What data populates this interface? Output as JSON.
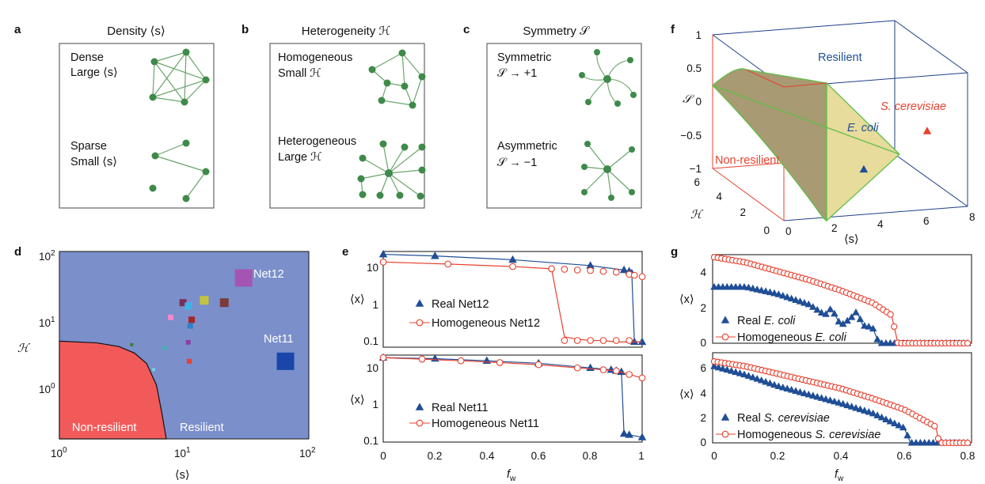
{
  "panels": {
    "a": {
      "label": "a",
      "title": "Density ⟨s⟩",
      "top_lines": [
        "Dense",
        "Large ⟨s⟩"
      ],
      "bottom_lines": [
        "Sparse",
        "Small ⟨s⟩"
      ]
    },
    "b": {
      "label": "b",
      "title": "Heterogeneity ℋ",
      "top_lines": [
        "Homogeneous",
        "Small ℋ"
      ],
      "bottom_lines": [
        "Heterogeneous",
        "Large ℋ"
      ]
    },
    "c": {
      "label": "c",
      "title": "Symmetry 𝒮",
      "top_lines": [
        "Symmetric",
        "𝒮 → +1"
      ],
      "bottom_lines": [
        "Asymmetric",
        "𝒮 → −1"
      ]
    },
    "f": {
      "label": "f",
      "z_label": "𝒮",
      "z_ticks": [
        "1",
        "0.5",
        "0",
        "−0.5",
        "−1"
      ],
      "h_label": "ℋ",
      "h_ticks": [
        "6",
        "4",
        "2",
        "0"
      ],
      "s_label": "⟨s⟩",
      "s_ticks": [
        "0",
        "2",
        "4",
        "6",
        "8"
      ],
      "resilient_label": "Resilient",
      "nonresilient_label": "Non-resilient",
      "points": [
        {
          "name": "E. coli",
          "s": 4.1,
          "h": 1.2,
          "S": -0.5,
          "color": "#1f4e96"
        },
        {
          "name": "S. cerevisiae",
          "s": 6.5,
          "h": 0.5,
          "S": 0.1,
          "color": "#e8402e"
        }
      ]
    },
    "d": {
      "label": "d",
      "y_label": "ℋ",
      "x_label": "⟨s⟩",
      "x_ticks": [
        {
          "base": "10",
          "exp": "0"
        },
        {
          "base": "10",
          "exp": "1"
        },
        {
          "base": "10",
          "exp": "2"
        }
      ],
      "y_ticks": [
        {
          "base": "10",
          "exp": "0"
        },
        {
          "base": "10",
          "exp": "1"
        },
        {
          "base": "10",
          "exp": "2"
        }
      ],
      "nonresilient_label": "Non-resilient",
      "resilient_label": "Resilient",
      "region_colors": {
        "resilient": "#7b8fcb",
        "nonresilient": "#f25a5a"
      },
      "boundary": [
        [
          1,
          5.7
        ],
        [
          2,
          5.4
        ],
        [
          3,
          4.8
        ],
        [
          4,
          3.9
        ],
        [
          5,
          2.8
        ],
        [
          6,
          1.4
        ],
        [
          6.6,
          0.6
        ],
        [
          7.2,
          0.15
        ]
      ],
      "networks": [
        {
          "name": "Net12",
          "s": 30,
          "h": 43,
          "color": "#a455b4",
          "size": 22,
          "label": "Net12"
        },
        {
          "name": "Net11",
          "s": 65,
          "h": 3.0,
          "color": "#1946a8",
          "size": 22,
          "label": "Net11"
        },
        {
          "name": "n1",
          "s": 14.5,
          "h": 21,
          "color": "#c3c43e",
          "size": 11
        },
        {
          "name": "n2",
          "s": 21,
          "h": 19.5,
          "color": "#7b3b3b",
          "size": 11
        },
        {
          "name": "n3",
          "s": 9.8,
          "h": 19.5,
          "color": "#7a2f5a",
          "size": 9
        },
        {
          "name": "n4",
          "s": 10.8,
          "h": 17.5,
          "color": "#3fb5e5",
          "size": 9
        },
        {
          "name": "n5",
          "s": 11.5,
          "h": 11.3,
          "color": "#a8252a",
          "size": 8
        },
        {
          "name": "n6",
          "s": 7.8,
          "h": 12.2,
          "color": "#f08acb",
          "size": 7
        },
        {
          "name": "n7",
          "s": 11.2,
          "h": 9.3,
          "color": "#2d82c8",
          "size": 7
        },
        {
          "name": "n8",
          "s": 10.8,
          "h": 5.5,
          "color": "#8a3fa8",
          "size": 6
        },
        {
          "name": "n9",
          "s": 3.8,
          "h": 5.1,
          "color": "#3a7d35",
          "size": 4
        },
        {
          "name": "n10",
          "s": 7.0,
          "h": 4.6,
          "color": "#3fb5b0",
          "size": 5
        },
        {
          "name": "n11",
          "s": 11.0,
          "h": 3.0,
          "color": "#e8402e",
          "size": 6
        },
        {
          "name": "n12",
          "s": 5.7,
          "h": 2.3,
          "color": "#7ad0e0",
          "size": 4
        }
      ]
    }
  },
  "chart_data": [
    {
      "panel": "e",
      "label": "e",
      "type": "line",
      "x_label": "f_w",
      "x_ticks": [
        "0",
        "0.2",
        "0.4",
        "0.6",
        "0.8",
        "1"
      ],
      "y_label": "⟨x⟩",
      "y_scale": "log",
      "subplots": [
        {
          "y_ticks": [
            "10",
            "1",
            "0.1"
          ],
          "series": [
            {
              "name": "Real Net12",
              "legend": "Real Net12",
              "color": "#1f4e96",
              "marker": "triangle",
              "x": [
                0,
                0.2,
                0.5,
                0.8,
                0.93,
                0.95,
                0.96,
                0.97,
                1.0
              ],
              "y": [
                17,
                15.5,
                12.5,
                9,
                7,
                6.5,
                5.8,
                0.12,
                0.12
              ]
            },
            {
              "name": "Homogeneous Net12",
              "legend": "Homogeneous Net12",
              "color": "#e8402e",
              "marker": "circle",
              "x": [
                0,
                0.25,
                0.5,
                0.65,
                0.7,
                0.75,
                0.8,
                0.85,
                0.9,
                0.95,
                0.97,
                1.0
              ],
              "y": [
                11,
                9.8,
                8.5,
                7.5,
                0.16,
                0.14,
                0.13,
                0.13,
                0.12,
                0.12,
                0.12,
                0.12
              ],
              "markers_y": [
                11,
                9.8,
                8.5,
                7.5,
                7.3,
                7.0,
                6.8,
                6.5,
                6.2,
                5.5,
                5.2,
                4.8
              ],
              "markers_x_lo": [
                0.7,
                0.75,
                0.8,
                0.85,
                0.9,
                0.95
              ]
            }
          ]
        },
        {
          "y_ticks": [
            "10",
            "1",
            "0.1"
          ],
          "series": [
            {
              "name": "Real Net11",
              "legend": "Real Net11",
              "color": "#1f4e96",
              "marker": "triangle",
              "x": [
                0,
                0.2,
                0.4,
                0.6,
                0.8,
                0.88,
                0.9,
                0.92,
                0.93,
                0.95,
                1.0
              ],
              "y": [
                17,
                16,
                14,
                12,
                9,
                8,
                7.5,
                7,
                0.15,
                0.14,
                0.12
              ]
            },
            {
              "name": "Homogeneous Net11",
              "legend": "Homogeneous Net11",
              "color": "#e8402e",
              "marker": "circle",
              "x": [
                0,
                0.15,
                0.3,
                0.45,
                0.6,
                0.75,
                0.85,
                0.9,
                0.95,
                1.0
              ],
              "y": [
                17,
                15.5,
                14,
                12.5,
                11,
                9,
                8,
                7.5,
                6,
                4.8
              ]
            }
          ]
        }
      ]
    },
    {
      "panel": "g",
      "label": "g",
      "type": "line",
      "x_label": "f_w",
      "x_ticks": [
        "0",
        "0.2",
        "0.4",
        "0.6",
        "0.8"
      ],
      "y_label": "⟨x⟩",
      "subplots": [
        {
          "y_ticks": [
            "4",
            "2",
            "0"
          ],
          "ylim": [
            0,
            5
          ],
          "series": [
            {
              "name": "Real E. coli",
              "legend_plain": "Real ",
              "legend_italic": "E. coli",
              "color": "#1f4e96",
              "marker": "triangle",
              "x": [
                0,
                0.1,
                0.2,
                0.3,
                0.35,
                0.37,
                0.4,
                0.43,
                0.45,
                0.47,
                0.5,
                0.52,
                0.8
              ],
              "y": [
                3.2,
                3.2,
                2.8,
                2.2,
                1.6,
                2.0,
                1.0,
                1.4,
                1.8,
                1.0,
                0.9,
                0.0,
                0.0
              ]
            },
            {
              "name": "Homogeneous E. coli",
              "legend_plain": "Homogeneous ",
              "legend_italic": "E. coli",
              "color": "#e8402e",
              "marker": "circle",
              "x": [
                0,
                0.1,
                0.2,
                0.3,
                0.4,
                0.5,
                0.56,
                0.58,
                0.8
              ],
              "y": [
                4.9,
                4.6,
                4.1,
                3.6,
                3.0,
                2.3,
                1.6,
                0.0,
                0.0
              ]
            }
          ]
        },
        {
          "y_ticks": [
            "6",
            "4",
            "2",
            "0"
          ],
          "ylim": [
            0,
            7
          ],
          "series": [
            {
              "name": "Real S. cerevisiae",
              "legend_plain": "Real ",
              "legend_italic": "S. cerevisiae",
              "color": "#1f4e96",
              "marker": "triangle",
              "x": [
                0,
                0.1,
                0.2,
                0.3,
                0.4,
                0.5,
                0.6,
                0.62,
                0.8
              ],
              "y": [
                6.2,
                5.5,
                4.6,
                3.9,
                3.2,
                2.4,
                1.2,
                0.0,
                0.0
              ]
            },
            {
              "name": "Homogeneous S. cerevisiae",
              "legend_plain": "Homogeneous ",
              "legend_italic": "S. cerevisiae",
              "color": "#e8402e",
              "marker": "circle",
              "x": [
                0,
                0.1,
                0.2,
                0.3,
                0.4,
                0.5,
                0.6,
                0.7,
                0.71,
                0.8
              ],
              "y": [
                6.6,
                6.2,
                5.6,
                5.0,
                4.4,
                3.6,
                2.7,
                1.3,
                0.0,
                0.0
              ]
            }
          ]
        }
      ]
    }
  ]
}
